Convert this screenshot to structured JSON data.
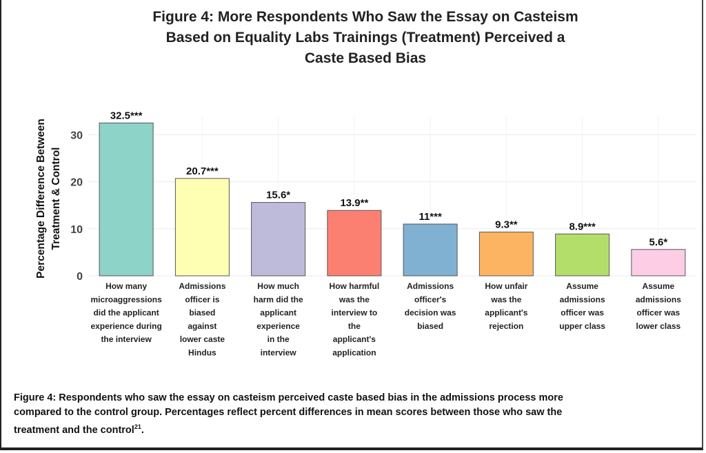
{
  "chart_data": {
    "type": "bar",
    "title_lines": [
      "Figure 4: More Respondents Who Saw the Essay on Casteism",
      "Based on Equality Labs Trainings (Treatment) Perceived a",
      "Caste Based Bias"
    ],
    "ylabel_lines": [
      "Percentage Difference Between",
      "Treatment & Control"
    ],
    "xlabel": "",
    "ylim": [
      0,
      34
    ],
    "yticks": [
      0,
      10,
      20,
      30
    ],
    "grid": true,
    "legend": "none",
    "categories": [
      [
        "How many",
        "microaggressions",
        "did the applicant",
        "experience during",
        "the interview"
      ],
      [
        "Admissions",
        "officer is",
        "biased",
        "against",
        "lower caste",
        "Hindus"
      ],
      [
        "How much",
        "harm did the",
        "applicant",
        "experience",
        "in the",
        "interview"
      ],
      [
        "How harmful",
        "was the",
        "interview to",
        "the",
        "applicant's",
        "application"
      ],
      [
        "Admissions",
        "officer's",
        "decision was",
        "biased"
      ],
      [
        "How unfair",
        "was the",
        "applicant's",
        "rejection"
      ],
      [
        "Assume",
        "admissions",
        "officer was",
        "upper class"
      ],
      [
        "Assume",
        "admissions",
        "officer was",
        "lower class"
      ]
    ],
    "values": [
      32.5,
      20.7,
      15.6,
      13.9,
      11,
      9.3,
      8.9,
      5.6
    ],
    "data_labels": [
      "32.5***",
      "20.7***",
      "15.6*",
      "13.9**",
      "11***",
      "9.3**",
      "8.9***",
      "5.6*"
    ],
    "colors": [
      "#8dd3c7",
      "#ffffb3",
      "#bebada",
      "#fb8072",
      "#80b1d3",
      "#fdb462",
      "#b3de69",
      "#fccde5"
    ]
  },
  "caption": {
    "line1": "Figure 4: Respondents who saw the essay on casteism perceived caste based bias in the admissions process more",
    "line2": "compared to the control group. Percentages reflect percent differences in mean scores between those who saw the",
    "line3": "treatment and the control",
    "footnote": "21",
    "end": "."
  }
}
